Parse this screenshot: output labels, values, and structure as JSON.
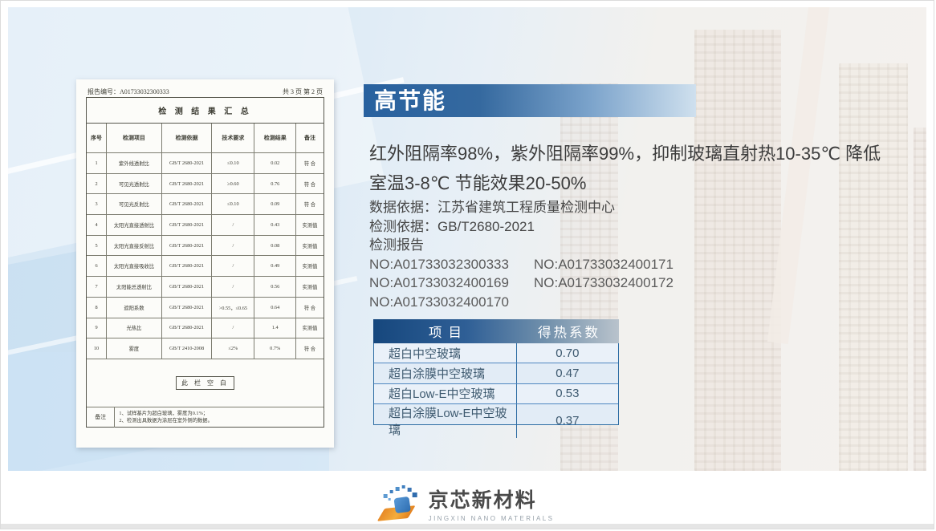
{
  "colors": {
    "banner_blue": "#28619f",
    "banner_fade": "#cfe0ee",
    "heat_header_blue": "#16477d",
    "heat_border_blue": "#2e6da4",
    "heat_row_bg": "#e9f0f8",
    "logo_orange": "#f0a035",
    "logo_blue": "#2d6cb0",
    "text_dark": "#3c3c3c"
  },
  "report_doc": {
    "report_no": "报告编号：A01733032300333",
    "page_info": "共 3 页 第 2 页",
    "title": "检 测 结 果 汇 总",
    "col_headers": [
      "序号",
      "检测项目",
      "检测依据",
      "技术要求",
      "检测结果",
      "备注"
    ],
    "rows": [
      [
        "1",
        "紫外线透射比",
        "GB/T 2680-2021",
        "≤0.10",
        "0.02",
        "符 合"
      ],
      [
        "2",
        "可见光透射比",
        "GB/T 2680-2021",
        "≥0.60",
        "0.76",
        "符 合"
      ],
      [
        "3",
        "可见光反射比",
        "GB/T 2680-2021",
        "≤0.10",
        "0.09",
        "符 合"
      ],
      [
        "4",
        "太阳光直接透射比",
        "GB/T 2680-2021",
        "/",
        "0.43",
        "实测值"
      ],
      [
        "5",
        "太阳光直接反射比",
        "GB/T 2680-2021",
        "/",
        "0.08",
        "实测值"
      ],
      [
        "6",
        "太阳光直接吸收比",
        "GB/T 2680-2021",
        "/",
        "0.49",
        "实测值"
      ],
      [
        "7",
        "太阳能总透射比",
        "GB/T 2680-2021",
        "/",
        "0.56",
        "实测值"
      ],
      [
        "8",
        "遮阳系数",
        "GB/T 2680-2021",
        ">0.55，≤0.65",
        "0.64",
        "符 合"
      ],
      [
        "9",
        "光热比",
        "GB/T 2680-2021",
        "/",
        "1.4",
        "实测值"
      ],
      [
        "10",
        "雾度",
        "GB/T 2410-2008",
        "≤2%",
        "0.7%",
        "符 合"
      ]
    ],
    "blank_note": "此 栏 空 白",
    "remarks_label": "备注",
    "remarks": [
      "1、试样基片为超白玻璃，雾度为0.1%；",
      "2、检测出具数据为涂层在室外侧的数据。"
    ]
  },
  "content": {
    "title": "高节能",
    "intro_line1": "红外阻隔率98%，紫外阻隔率99%，抑制玻璃直射热10-35℃ 降低",
    "intro_line2": "室温3-8℃ 节能效果20-50%",
    "data_basis": "数据依据：江苏省建筑工程质量检测中心",
    "test_basis": "检测依据：GB/T2680-2021",
    "report_label": "检测报告",
    "report_nos": [
      "NO:A01733032300333",
      "NO:A01733032400171",
      "NO:A01733032400169",
      "NO:A01733032400172",
      "NO:A01733032400170"
    ]
  },
  "heat_table": {
    "headers": [
      "项目",
      "得热系数"
    ],
    "rows": [
      [
        "超白中空玻璃",
        "0.70"
      ],
      [
        "超白涂膜中空玻璃",
        "0.47"
      ],
      [
        "超白Low-E中空玻璃",
        "0.53"
      ],
      [
        "超白涂膜Low-E中空玻璃",
        "0.37"
      ]
    ]
  },
  "logo": {
    "name": "京芯新材料",
    "subtitle": "JINGXIN NANO MATERIALS"
  }
}
